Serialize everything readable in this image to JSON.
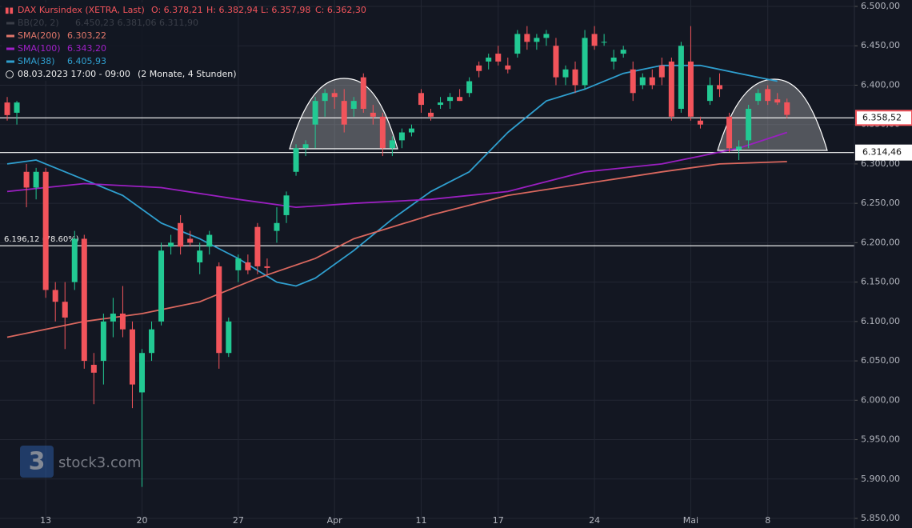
{
  "chart_data": {
    "type": "candlestick",
    "header": {
      "title": "DAX Kursindex (XETRA, Last)",
      "open": "O: 6.378,21",
      "high": "H: 6.382,94",
      "low": "L: 6.357,98",
      "close": "C: 6.362,30",
      "indicators": [
        {
          "name": "BB(20, 2)",
          "value": "6.450,23  6.381,06  6.311,90",
          "color": "#3a3e48"
        },
        {
          "name": "SMA(200)",
          "value": "6.303,22",
          "color": "#e0766a"
        },
        {
          "name": "SMA(100)",
          "value": "6.343,20",
          "color": "#a020c8"
        },
        {
          "name": "SMA(38)",
          "value": "6.405,93",
          "color": "#2f9fcf"
        }
      ],
      "period": "08.03.2023 17:00 - 09:00",
      "span": "(2 Monate, 4 Stunden)"
    },
    "up_color": "#22c993",
    "down_color": "#f2545b",
    "ohlc": [
      [
        6378,
        6385,
        6355,
        6362
      ],
      [
        6365,
        6380,
        6350,
        6378
      ],
      [
        6290,
        6300,
        6245,
        6270
      ],
      [
        6270,
        6295,
        6255,
        6290
      ],
      [
        6290,
        6295,
        6130,
        6140
      ],
      [
        6140,
        6150,
        6100,
        6125
      ],
      [
        6125,
        6150,
        6065,
        6105
      ],
      [
        6150,
        6215,
        6140,
        6205
      ],
      [
        6205,
        6210,
        6040,
        6050
      ],
      [
        6045,
        6060,
        5995,
        6035
      ],
      [
        6050,
        6110,
        6020,
        6100
      ],
      [
        6100,
        6130,
        6080,
        6110
      ],
      [
        6110,
        6145,
        6080,
        6090
      ],
      [
        6090,
        6100,
        5990,
        6020
      ],
      [
        6010,
        6065,
        5890,
        6060
      ],
      [
        6060,
        6100,
        6050,
        6090
      ],
      [
        6100,
        6200,
        6095,
        6190
      ],
      [
        6195,
        6210,
        6185,
        6200
      ],
      [
        6225,
        6235,
        6185,
        6195
      ],
      [
        6205,
        6215,
        6195,
        6200
      ],
      [
        6175,
        6200,
        6160,
        6190
      ],
      [
        6195,
        6215,
        6185,
        6210
      ],
      [
        6170,
        6175,
        6040,
        6060
      ],
      [
        6060,
        6105,
        6055,
        6100
      ],
      [
        6165,
        6185,
        6150,
        6180
      ],
      [
        6175,
        6185,
        6160,
        6165
      ],
      [
        6220,
        6225,
        6160,
        6170
      ],
      [
        6170,
        6180,
        6160,
        6168
      ],
      [
        6215,
        6245,
        6200,
        6225
      ],
      [
        6235,
        6265,
        6225,
        6260
      ],
      [
        6290,
        6325,
        6285,
        6320
      ],
      [
        6320,
        6330,
        6310,
        6325
      ],
      [
        6350,
        6385,
        6320,
        6380
      ],
      [
        6380,
        6395,
        6360,
        6390
      ],
      [
        6390,
        6395,
        6370,
        6385
      ],
      [
        6380,
        6395,
        6340,
        6350
      ],
      [
        6370,
        6385,
        6360,
        6380
      ],
      [
        6410,
        6415,
        6365,
        6370
      ],
      [
        6365,
        6375,
        6350,
        6360
      ],
      [
        6360,
        6365,
        6310,
        6320
      ],
      [
        6320,
        6335,
        6310,
        6330
      ],
      [
        6330,
        6345,
        6320,
        6340
      ],
      [
        6340,
        6350,
        6335,
        6345
      ],
      [
        6390,
        6395,
        6365,
        6375
      ],
      [
        6365,
        6370,
        6355,
        6360
      ],
      [
        6375,
        6385,
        6370,
        6378
      ],
      [
        6380,
        6390,
        6370,
        6385
      ],
      [
        6385,
        6395,
        6380,
        6380
      ],
      [
        6390,
        6410,
        6385,
        6405
      ],
      [
        6425,
        6430,
        6410,
        6418
      ],
      [
        6430,
        6440,
        6420,
        6435
      ],
      [
        6440,
        6450,
        6425,
        6430
      ],
      [
        6425,
        6435,
        6415,
        6420
      ],
      [
        6440,
        6470,
        6435,
        6465
      ],
      [
        6465,
        6475,
        6445,
        6455
      ],
      [
        6455,
        6465,
        6445,
        6460
      ],
      [
        6460,
        6470,
        6450,
        6465
      ],
      [
        6450,
        6460,
        6400,
        6410
      ],
      [
        6410,
        6425,
        6400,
        6420
      ],
      [
        6420,
        6430,
        6390,
        6400
      ],
      [
        6400,
        6470,
        6395,
        6460
      ],
      [
        6465,
        6475,
        6445,
        6450
      ],
      [
        6455,
        6465,
        6450,
        6455
      ],
      [
        6430,
        6445,
        6420,
        6435
      ],
      [
        6440,
        6450,
        6435,
        6445
      ],
      [
        6420,
        6430,
        6380,
        6390
      ],
      [
        6400,
        6415,
        6395,
        6410
      ],
      [
        6410,
        6420,
        6395,
        6400
      ],
      [
        6425,
        6435,
        6400,
        6410
      ],
      [
        6430,
        6435,
        6355,
        6360
      ],
      [
        6370,
        6455,
        6365,
        6450
      ],
      [
        6430,
        6475,
        6355,
        6360
      ],
      [
        6355,
        6360,
        6345,
        6350
      ],
      [
        6380,
        6410,
        6375,
        6400
      ],
      [
        6400,
        6415,
        6385,
        6395
      ],
      [
        6360,
        6365,
        6315,
        6320
      ],
      [
        6318,
        6330,
        6305,
        6322
      ],
      [
        6330,
        6375,
        6320,
        6370
      ],
      [
        6380,
        6395,
        6375,
        6390
      ],
      [
        6395,
        6400,
        6375,
        6380
      ],
      [
        6382,
        6390,
        6375,
        6378
      ],
      [
        6378.21,
        6382.94,
        6357.98,
        6362.3
      ]
    ],
    "lines": [
      {
        "name": "SMA(38)",
        "color": "#2f9fcf",
        "x": [
          0,
          3,
          8,
          12,
          16,
          20,
          24,
          28,
          30,
          32,
          36,
          40,
          44,
          48,
          52,
          56,
          60,
          64,
          68,
          72,
          76,
          80
        ],
        "values": [
          6300,
          6305,
          6280,
          6260,
          6225,
          6205,
          6180,
          6150,
          6145,
          6155,
          6190,
          6230,
          6265,
          6290,
          6340,
          6380,
          6395,
          6415,
          6425,
          6425,
          6415,
          6405
        ]
      },
      {
        "name": "SMA(100)",
        "color": "#9a1fc0",
        "x": [
          0,
          8,
          16,
          24,
          30,
          36,
          44,
          52,
          60,
          68,
          72,
          76,
          81
        ],
        "values": [
          6265,
          6275,
          6270,
          6255,
          6245,
          6250,
          6255,
          6265,
          6290,
          6300,
          6310,
          6320,
          6340
        ]
      },
      {
        "name": "SMA(200)",
        "color": "#d9675e",
        "x": [
          0,
          8,
          14,
          20,
          26,
          32,
          36,
          44,
          52,
          60,
          68,
          74,
          81
        ],
        "values": [
          6080,
          6100,
          6110,
          6125,
          6155,
          6180,
          6205,
          6235,
          6260,
          6275,
          6290,
          6300,
          6303
        ]
      }
    ],
    "hlines": [
      {
        "value": 6358.52,
        "label": "6.358,52"
      },
      {
        "value": 6314.46,
        "label": "6.314,46"
      },
      {
        "value": 6196.12,
        "label": "6.196,12 (78.60%)"
      }
    ],
    "ylim": [
      5850,
      6500
    ],
    "yticks": [
      {
        "value": 5850,
        "label": "5.850,00"
      },
      {
        "value": 5900,
        "label": "5.900,00"
      },
      {
        "value": 5950,
        "label": "5.950,00"
      },
      {
        "value": 6000,
        "label": "6.000,00"
      },
      {
        "value": 6050,
        "label": "6.050,00"
      },
      {
        "value": 6100,
        "label": "6.100,00"
      },
      {
        "value": 6150,
        "label": "6.150,00"
      },
      {
        "value": 6200,
        "label": "6.200,00"
      },
      {
        "value": 6250,
        "label": "6.250,00"
      },
      {
        "value": 6300,
        "label": "6.300,00"
      },
      {
        "value": 6350,
        "label": "6.350,00"
      },
      {
        "value": 6400,
        "label": "6.400,00"
      },
      {
        "value": 6450,
        "label": "6.450,00"
      },
      {
        "value": 6500,
        "label": "6.500,00"
      }
    ],
    "xlim": [
      -0.75,
      88
    ],
    "xticks": [
      {
        "value": 4,
        "label": "13"
      },
      {
        "value": 14,
        "label": "20"
      },
      {
        "value": 24,
        "label": "27"
      },
      {
        "value": 34,
        "label": "Apr"
      },
      {
        "value": 43,
        "label": "11"
      },
      {
        "value": 51,
        "label": "17"
      },
      {
        "value": 61,
        "label": "24"
      },
      {
        "value": 71,
        "label": "Mai"
      },
      {
        "value": 79,
        "label": "8"
      }
    ],
    "grid": true,
    "watermark": "stock3.com"
  }
}
